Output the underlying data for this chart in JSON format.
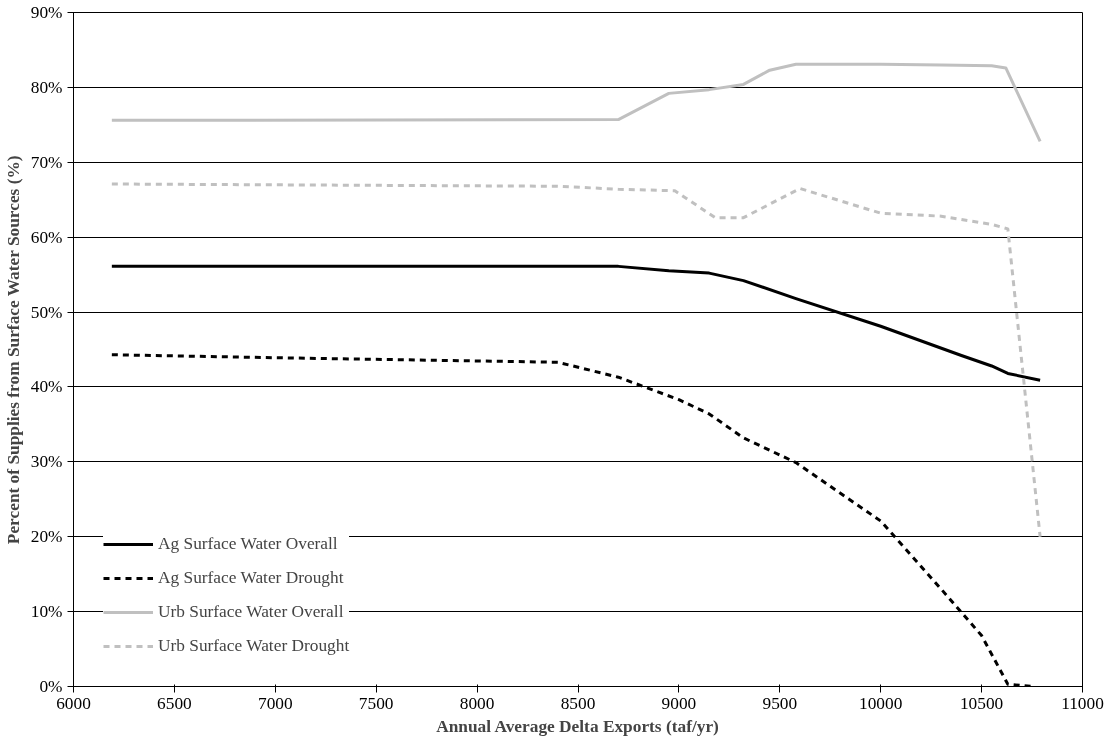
{
  "chart_data": {
    "type": "line",
    "xlabel": "Annual Average Delta Exports (taf/yr)",
    "ylabel": "Percent of Supplies from Surface Water Sources (%)",
    "xlim": [
      6000,
      11000
    ],
    "xticks": [
      6000,
      6500,
      7000,
      7500,
      8000,
      8500,
      9000,
      9500,
      10000,
      10500,
      11000
    ],
    "ylim": [
      0,
      90
    ],
    "yticks": [
      {
        "value": 0,
        "label": "0%"
      },
      {
        "value": 10,
        "label": "10%"
      },
      {
        "value": 20,
        "label": "20%"
      },
      {
        "value": 30,
        "label": "30%"
      },
      {
        "value": 40,
        "label": "40%"
      },
      {
        "value": 50,
        "label": "50%"
      },
      {
        "value": 60,
        "label": "60%"
      },
      {
        "value": 70,
        "label": "70%"
      },
      {
        "value": 80,
        "label": "80%"
      },
      {
        "value": 90,
        "label": "90%"
      }
    ],
    "grid": "y",
    "legend": "bottom left",
    "series": [
      {
        "name": "Ag Surface Water Overall",
        "color": "#000000",
        "line_style": "solid",
        "x": [
          6190,
          8700,
          8950,
          9150,
          9320,
          9580,
          10000,
          10400,
          10550,
          10630,
          10790
        ],
        "values": [
          56.1,
          56.1,
          55.5,
          55.2,
          54.2,
          51.8,
          48.1,
          44.2,
          42.8,
          41.8,
          40.9
        ]
      },
      {
        "name": "Ag Surface Water Drought",
        "color": "#000000",
        "line_style": "dashed",
        "x": [
          6190,
          7000,
          8400,
          8700,
          9000,
          9150,
          9320,
          9580,
          10000,
          10300,
          10500,
          10630,
          10750
        ],
        "values": [
          44.3,
          43.9,
          43.3,
          41.3,
          38.3,
          36.4,
          33.2,
          29.9,
          22.1,
          13.0,
          6.8,
          0.3,
          0.0
        ]
      },
      {
        "name": "Urb Surface Water Overall",
        "color": "#c0c0c0",
        "line_style": "solid",
        "x": [
          6190,
          8700,
          8950,
          9150,
          9320,
          9450,
          9580,
          10000,
          10300,
          10550,
          10620,
          10790
        ],
        "values": [
          75.6,
          75.7,
          79.2,
          79.7,
          80.4,
          82.3,
          83.1,
          83.1,
          83.0,
          82.9,
          82.6,
          72.8
        ]
      },
      {
        "name": "Urb Surface Water Drought",
        "color": "#c0c0c0",
        "line_style": "dashed",
        "x": [
          6190,
          8400,
          8700,
          8980,
          9180,
          9320,
          9600,
          10000,
          10300,
          10550,
          10630,
          10790
        ],
        "values": [
          67.1,
          66.8,
          66.4,
          66.2,
          62.6,
          62.6,
          66.5,
          63.2,
          62.8,
          61.7,
          61.1,
          20.0
        ]
      }
    ]
  }
}
